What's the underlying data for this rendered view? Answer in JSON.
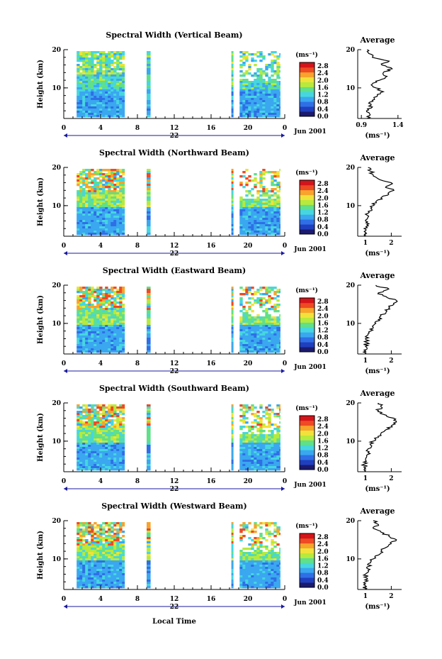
{
  "colors": {
    "colormap": [
      "#1a1a6e",
      "#1f3fbf",
      "#2f6fe6",
      "#3aa7f0",
      "#46d6e0",
      "#5fe08a",
      "#b7ea3c",
      "#f0e23a",
      "#f7a32c",
      "#ee4a23",
      "#d4141a"
    ],
    "axis": "#000000",
    "timebar": "#1a1aa0"
  },
  "shared": {
    "x_ticks": [
      "0",
      "4",
      "8",
      "12",
      "16",
      "20",
      "0"
    ],
    "day_label": "22",
    "date_label": "Jun 2001",
    "xlabel": "Local Time",
    "colorbar_unit": "(ms⁻¹)",
    "colorbar_ticks": [
      "2.8",
      "2.4",
      "2.0",
      "1.6",
      "1.2",
      "0.8",
      "0.4",
      "0.0"
    ],
    "avg_title": "Average",
    "avg_xlabel": "(ms⁻¹)"
  },
  "chart_data": [
    {
      "type": "heatmap",
      "title": "Spectral Width (Vertical Beam)",
      "ylabel": "Height (km)",
      "y_ticks": [
        "20",
        "10"
      ],
      "xlim": [
        0,
        24
      ],
      "ylim": [
        2,
        20
      ],
      "data_segments_hours": [
        [
          1.4,
          6.6
        ],
        [
          9.0,
          9.4
        ],
        [
          18.2,
          18.4
        ],
        [
          19.1,
          23.5
        ]
      ],
      "colorbar_range": [
        0.0,
        3.0
      ],
      "profile": {
        "title": "Average",
        "x_ticks": [
          "0.9",
          "1.4"
        ],
        "xlim": [
          0.85,
          1.45
        ],
        "heights_km": [
          2,
          3,
          4,
          5,
          6,
          7,
          8,
          9,
          10,
          11,
          12,
          13,
          14,
          15,
          16,
          17,
          18,
          19,
          20
        ],
        "values": [
          0.98,
          1.02,
          0.97,
          1.05,
          1.0,
          1.08,
          1.12,
          1.2,
          1.1,
          1.05,
          1.15,
          1.25,
          1.2,
          1.32,
          1.18,
          1.28,
          1.05,
          1.0,
          0.98
        ]
      }
    },
    {
      "type": "heatmap",
      "title": "Spectral Width (Northward Beam)",
      "ylabel": "Height (km)",
      "y_ticks": [
        "20",
        "10"
      ],
      "xlim": [
        0,
        24
      ],
      "ylim": [
        2,
        20
      ],
      "data_segments_hours": [
        [
          1.4,
          6.6
        ],
        [
          9.0,
          9.4
        ],
        [
          18.2,
          18.4
        ],
        [
          19.1,
          23.5
        ]
      ],
      "colorbar_range": [
        0.0,
        3.0
      ],
      "profile": {
        "title": "Average",
        "x_ticks": [
          "1",
          "2"
        ],
        "xlim": [
          0.7,
          2.4
        ],
        "heights_km": [
          2,
          3,
          4,
          5,
          6,
          7,
          8,
          9,
          10,
          11,
          12,
          13,
          14,
          15,
          16,
          17,
          18,
          19,
          20
        ],
        "values": [
          1.0,
          1.0,
          0.95,
          1.05,
          1.0,
          1.1,
          1.1,
          1.25,
          1.3,
          1.4,
          1.6,
          1.9,
          2.1,
          1.8,
          2.0,
          1.5,
          1.3,
          1.2,
          1.1
        ]
      }
    },
    {
      "type": "heatmap",
      "title": "Spectral Width (Eastward Beam)",
      "ylabel": "Height (km)",
      "y_ticks": [
        "20",
        "10"
      ],
      "xlim": [
        0,
        24
      ],
      "ylim": [
        2,
        20
      ],
      "data_segments_hours": [
        [
          1.4,
          6.6
        ],
        [
          9.0,
          9.4
        ],
        [
          18.2,
          18.4
        ],
        [
          19.1,
          23.5
        ]
      ],
      "colorbar_range": [
        0.0,
        3.0
      ],
      "profile": {
        "title": "Average",
        "x_ticks": [
          "1",
          "2"
        ],
        "xlim": [
          0.7,
          2.4
        ],
        "heights_km": [
          2,
          3,
          4,
          5,
          6,
          7,
          8,
          9,
          10,
          11,
          12,
          13,
          14,
          15,
          16,
          17,
          18,
          19,
          20
        ],
        "values": [
          1.0,
          0.95,
          1.0,
          1.05,
          1.0,
          1.1,
          1.2,
          1.3,
          1.4,
          1.5,
          1.6,
          1.8,
          1.9,
          2.1,
          2.2,
          1.8,
          1.5,
          1.9,
          1.4
        ]
      }
    },
    {
      "type": "heatmap",
      "title": "Spectral Width (Southward Beam)",
      "ylabel": "Height (km)",
      "y_ticks": [
        "20",
        "10"
      ],
      "xlim": [
        0,
        24
      ],
      "ylim": [
        2,
        20
      ],
      "data_segments_hours": [
        [
          1.4,
          6.6
        ],
        [
          9.0,
          9.4
        ],
        [
          18.2,
          18.4
        ],
        [
          19.1,
          23.5
        ]
      ],
      "colorbar_range": [
        0.0,
        3.0
      ],
      "profile": {
        "title": "Average",
        "x_ticks": [
          "1",
          "2"
        ],
        "xlim": [
          0.7,
          2.4
        ],
        "heights_km": [
          2,
          3,
          4,
          5,
          6,
          7,
          8,
          9,
          10,
          11,
          12,
          13,
          14,
          15,
          16,
          17,
          18,
          19,
          20
        ],
        "values": [
          1.0,
          1.0,
          0.95,
          1.0,
          1.05,
          1.1,
          1.1,
          1.2,
          1.3,
          1.5,
          1.6,
          1.8,
          2.0,
          2.2,
          2.1,
          1.7,
          1.5,
          1.6,
          1.5
        ]
      }
    },
    {
      "type": "heatmap",
      "title": "Spectral Width (Westward Beam)",
      "ylabel": "Height (km)",
      "y_ticks": [
        "20",
        "10"
      ],
      "xlim": [
        0,
        24
      ],
      "ylim": [
        2,
        20
      ],
      "data_segments_hours": [
        [
          1.4,
          6.6
        ],
        [
          9.0,
          9.4
        ],
        [
          18.2,
          18.4
        ],
        [
          19.1,
          23.5
        ]
      ],
      "colorbar_range": [
        0.0,
        3.0
      ],
      "profile": {
        "title": "Average",
        "x_ticks": [
          "1",
          "2"
        ],
        "xlim": [
          0.7,
          2.4
        ],
        "heights_km": [
          2,
          3,
          4,
          5,
          6,
          7,
          8,
          9,
          10,
          11,
          12,
          13,
          14,
          15,
          16,
          17,
          18,
          19,
          20
        ],
        "values": [
          1.0,
          1.0,
          1.0,
          1.05,
          1.0,
          1.1,
          1.1,
          1.2,
          1.3,
          1.5,
          1.6,
          1.8,
          2.0,
          2.2,
          1.9,
          1.6,
          1.3,
          1.5,
          1.3
        ]
      }
    }
  ]
}
